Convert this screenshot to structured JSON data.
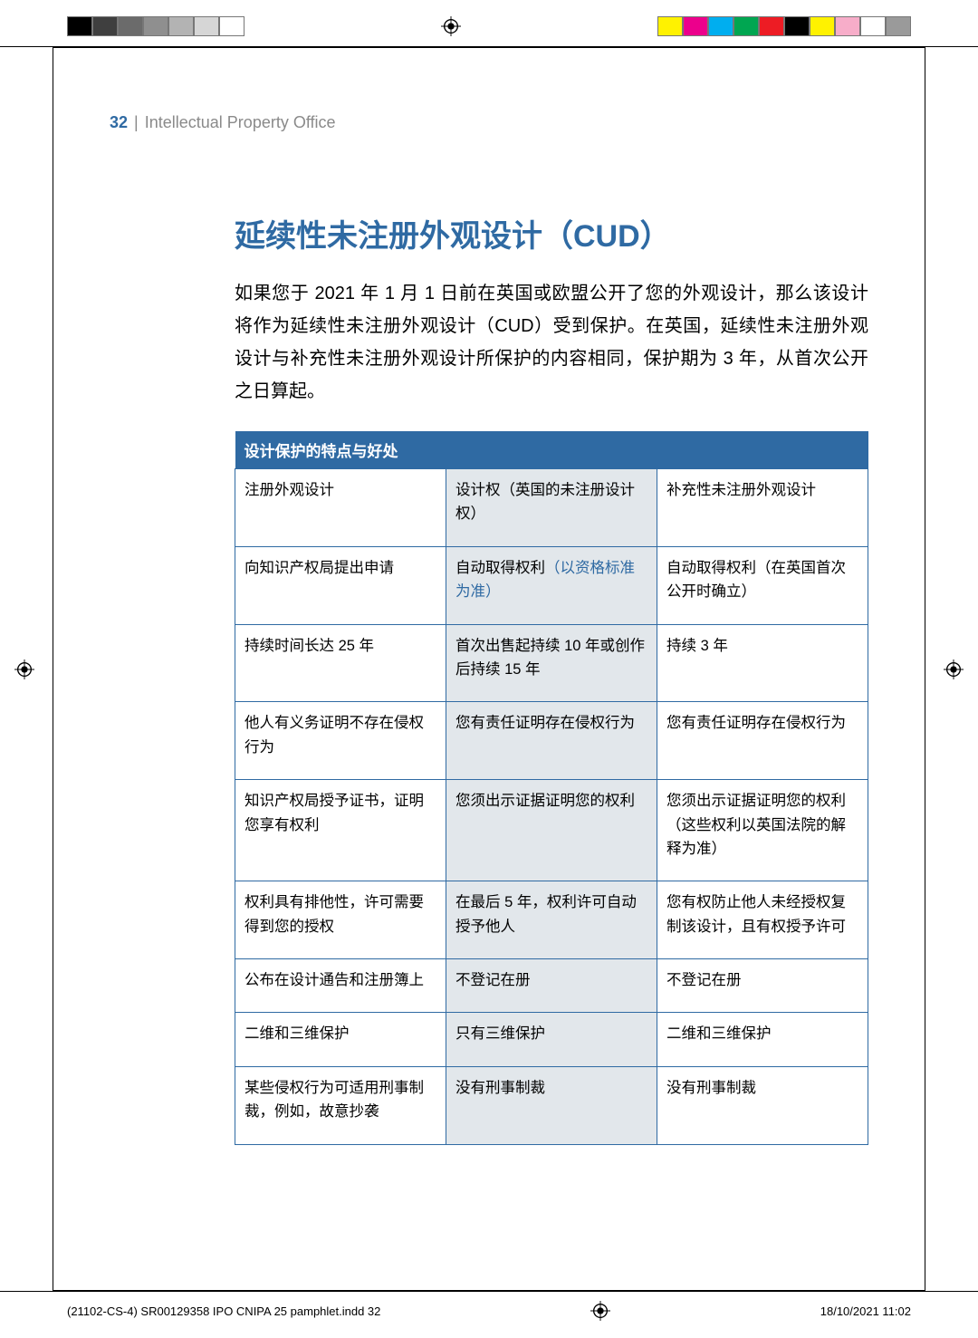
{
  "colors": {
    "accent": "#2f6aa3",
    "header_bg": "#2f6aa3",
    "col2_bg": "#e2e7eb",
    "border": "#2f6aa3",
    "link": "#2f6aa3",
    "org_gray": "#8a8a8a"
  },
  "print_bars": {
    "left_grays": [
      "#000000",
      "#3f3f3f",
      "#6b6b6b",
      "#8f8f8f",
      "#b3b3b3",
      "#d6d6d6",
      "#ffffff"
    ],
    "right_colors": [
      "#fff200",
      "#ec008c",
      "#00aeef",
      "#00a651",
      "#ed1c24",
      "#000000",
      "#fff200",
      "#f7adc9",
      "#ffffff",
      "#9a9a9a"
    ]
  },
  "header": {
    "page_number": "32",
    "separator": "|",
    "org": "Intellectual Property Office"
  },
  "title": "延续性未注册外观设计（CUD）",
  "intro": "如果您于 2021 年 1 月 1 日前在英国或欧盟公开了您的外观设计，那么该设计将作为延续性未注册外观设计（CUD）受到保护。在英国，延续性未注册外观设计与补充性未注册外观设计所保护的内容相同，保护期为 3 年，从首次公开之日算起。",
  "table": {
    "caption": "设计保护的特点与好处",
    "col_widths": [
      "33.3%",
      "33.3%",
      "33.4%"
    ],
    "rows": [
      {
        "c1": "注册外观设计",
        "c2": "设计权（英国的未注册设计权）",
        "c3": "补充性未注册外观设计"
      },
      {
        "c1": "向知识产权局提出申请",
        "c2_pre": "自动取得权利",
        "c2_link": "（以资格标准为准）",
        "c3": "自动取得权利（在英国首次公开时确立）"
      },
      {
        "c1": "持续时间长达 25 年",
        "c2": "首次出售起持续 10 年或创作后持续 15 年",
        "c3": "持续 3 年"
      },
      {
        "c1": "他人有义务证明不存在侵权行为",
        "c2": "您有责任证明存在侵权行为",
        "c3": "您有责任证明存在侵权行为"
      },
      {
        "c1": "知识产权局授予证书，证明您享有权利",
        "c2": "您须出示证据证明您的权利",
        "c3": "您须出示证据证明您的权利（这些权利以英国法院的解释为准）"
      },
      {
        "c1": "权利具有排他性，许可需要得到您的授权",
        "c2": "在最后 5 年，权利许可自动授予他人",
        "c3": "您有权防止他人未经授权复制该设计，且有权授予许可"
      },
      {
        "c1": "公布在设计通告和注册簿上",
        "c2": "不登记在册",
        "c3": "不登记在册"
      },
      {
        "c1": "二维和三维保护",
        "c2": "只有三维保护",
        "c3": "二维和三维保护"
      },
      {
        "c1": "某些侵权行为可适用刑事制裁，例如，故意抄袭",
        "c2": "没有刑事制裁",
        "c3": "没有刑事制裁"
      }
    ]
  },
  "footer": {
    "left": "(21102-CS-4) SR00129358 IPO CNIPA 25 pamphlet.indd   32",
    "right": "18/10/2021   11:02"
  }
}
